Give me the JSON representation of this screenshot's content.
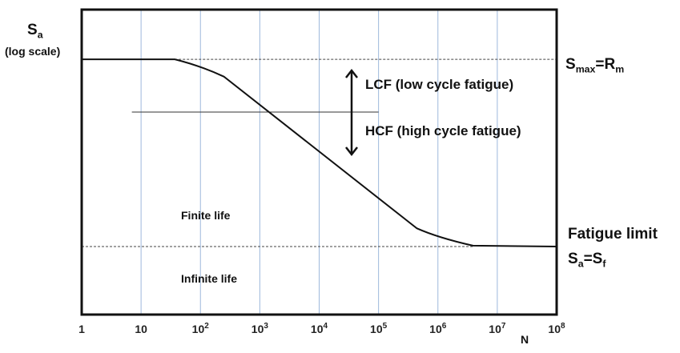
{
  "chart_data": {
    "type": "line",
    "title": "",
    "ylabel": "S",
    "ylabel_sub": "a",
    "ylabel_note": "(log scale)",
    "xlabel": "N",
    "x_scale": "log",
    "y_scale": "log",
    "xlim": [
      1,
      100000000
    ],
    "ylim": [
      0,
      1
    ],
    "grid": {
      "vertical": true,
      "horizontal": false,
      "color": "#9db8dc"
    },
    "x_ticks": [
      {
        "value": 1,
        "base": "1",
        "exp": ""
      },
      {
        "value": 10,
        "base": "10",
        "exp": ""
      },
      {
        "value": 100,
        "base": "10",
        "exp": "2"
      },
      {
        "value": 1000,
        "base": "10",
        "exp": "3"
      },
      {
        "value": 10000,
        "base": "10",
        "exp": "4"
      },
      {
        "value": 100000,
        "base": "10",
        "exp": "5"
      },
      {
        "value": 1000000,
        "base": "10",
        "exp": "6"
      },
      {
        "value": 10000000,
        "base": "10",
        "exp": "7"
      },
      {
        "value": 100000000,
        "base": "10",
        "exp": "8"
      }
    ],
    "series": [
      {
        "points": [
          [
            1,
            0.837
          ],
          [
            37,
            0.837
          ],
          [
            100,
            0.816
          ],
          [
            250,
            0.78
          ],
          [
            440000,
            0.283
          ],
          [
            1000000,
            0.252
          ],
          [
            3900000,
            0.226
          ],
          [
            100000000,
            0.223
          ]
        ],
        "color": "#111111"
      }
    ],
    "reference_lines": {
      "smax_level": 0.837,
      "fatigue_limit_level": 0.223,
      "lcf_hcf_boundary_level": 0.664,
      "lcf_hcf_boundary_x": [
        7,
        100000
      ]
    },
    "annotations": {
      "smax": {
        "s": "S",
        "sub1": "max",
        "eq": "=R",
        "sub2": "m"
      },
      "fatigue_limit": "Fatigue limit",
      "sa_sf": {
        "s": "S",
        "sub1": "a",
        "eq": "=S",
        "sub2": "f"
      },
      "lcf": "LCF (low cycle fatigue)",
      "hcf": "HCF (high cycle fatigue)",
      "finite": "Finite life",
      "infinite": "Infinite life"
    }
  }
}
